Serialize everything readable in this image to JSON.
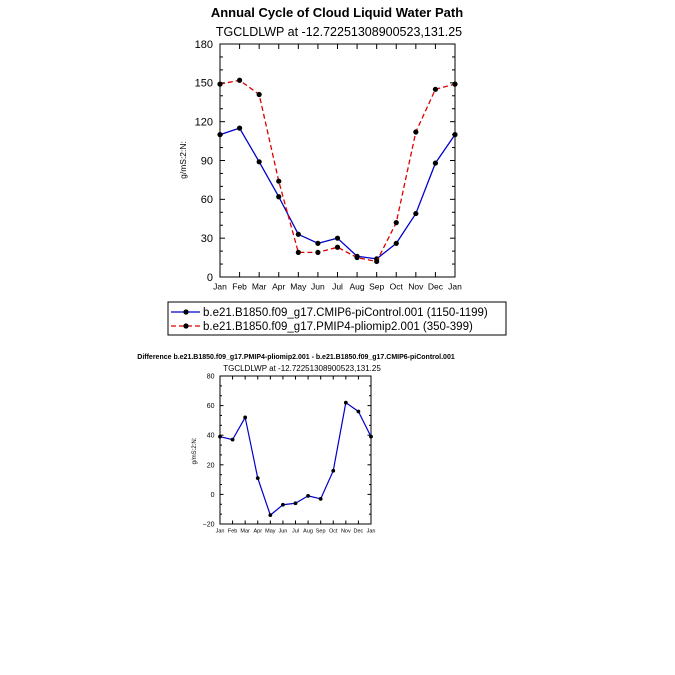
{
  "chart_data": [
    {
      "type": "line",
      "title": "Annual Cycle of Cloud Liquid Water Path",
      "subtitle": "TGCLDLWP  at  -12.72251308900523,131.25",
      "xlabel": "",
      "ylabel": "g/mS:2:N:",
      "categories": [
        "Jan",
        "Feb",
        "Mar",
        "Apr",
        "May",
        "Jun",
        "Jul",
        "Aug",
        "Sep",
        "Oct",
        "Nov",
        "Dec",
        "Jan"
      ],
      "ylim": [
        0,
        180
      ],
      "yticks": [
        "0",
        "30",
        "60",
        "90",
        "120",
        "150",
        "180"
      ],
      "grid": false,
      "legend_position": "bottom",
      "series": [
        {
          "name": "b.e21.B1850.f09_g17.CMIP6-piControl.001  (1150-1199)",
          "color": "#0000cc",
          "dash": "solid",
          "values": [
            110,
            115,
            89,
            62,
            33,
            26,
            30,
            16,
            14,
            26,
            49,
            88,
            110
          ]
        },
        {
          "name": "b.e21.B1850.f09_g17.PMIP4-pliomip2.001  (350-399)",
          "color": "#dd0000",
          "dash": "dashed",
          "values": [
            149,
            152,
            141,
            74,
            19,
            19,
            23,
            15,
            12,
            42,
            112,
            145,
            149
          ]
        }
      ]
    },
    {
      "type": "line",
      "title": "Difference b.e21.B1850.f09_g17.PMIP4-pliomip2.001 - b.e21.B1850.f09_g17.CMIP6-piControl.001",
      "subtitle": "TGCLDLWP  at  -12.72251308900523,131.25",
      "xlabel": "",
      "ylabel": "g/mS:2:N:",
      "categories": [
        "Jan",
        "Feb",
        "Mar",
        "Apr",
        "May",
        "Jun",
        "Jul",
        "Aug",
        "Sep",
        "Oct",
        "Nov",
        "Dec",
        "Jan"
      ],
      "ylim": [
        -20,
        80
      ],
      "yticks": [
        "−20",
        "0",
        "20",
        "40",
        "60",
        "80"
      ],
      "grid": false,
      "series": [
        {
          "color": "#0000cc",
          "values": [
            39,
            37,
            52,
            11,
            -14,
            -7,
            -6,
            -1,
            -3,
            16,
            62,
            56,
            39
          ]
        }
      ]
    }
  ]
}
